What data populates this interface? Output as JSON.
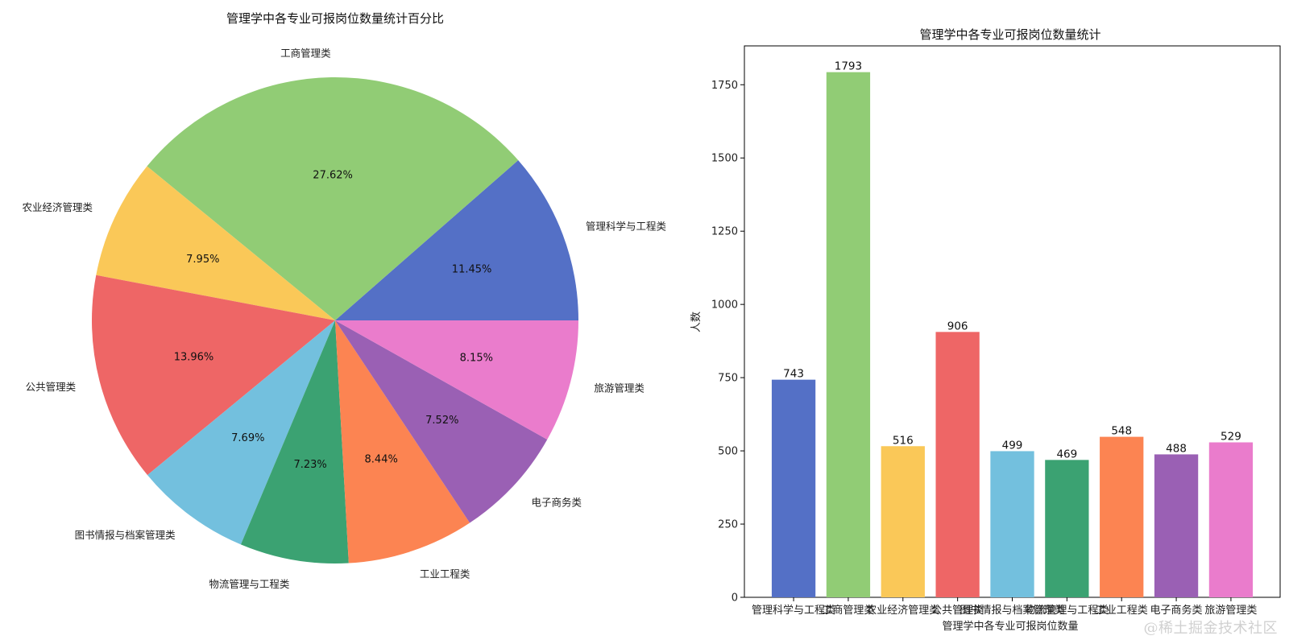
{
  "colors": [
    "#5470c6",
    "#91cc75",
    "#fac858",
    "#ee6666",
    "#73c0de",
    "#3ba272",
    "#fc8452",
    "#9a60b4",
    "#ea7ccc"
  ],
  "watermark": "@稀土掘金技术社区",
  "chart_data": [
    {
      "type": "pie",
      "title": "管理学中各专业可报岗位数量统计百分比",
      "labels": [
        "管理科学与工程类",
        "工商管理类",
        "农业经济管理类",
        "公共管理类",
        "图书情报与档案管理类",
        "物流管理与工程类",
        "工业工程类",
        "电子商务类",
        "旅游管理类"
      ],
      "values": [
        743,
        1793,
        516,
        906,
        499,
        469,
        548,
        488,
        529
      ],
      "percent_labels": [
        "11.45%",
        "27.62%",
        "7.95%",
        "13.96%",
        "7.69%",
        "7.23%",
        "8.44%",
        "7.52%",
        "8.15%"
      ],
      "start_angle_deg": 0,
      "direction": "counterclockwise"
    },
    {
      "type": "bar",
      "title": "管理学中各专业可报岗位数量统计",
      "categories": [
        "管理科学与工程类",
        "工商管理类",
        "农业经济管理类",
        "公共管理类",
        "图书情报与档案管理类",
        "物流管理与工程类",
        "工业工程类",
        "电子商务类",
        "旅游管理类"
      ],
      "values": [
        743,
        1793,
        516,
        906,
        499,
        469,
        548,
        488,
        529
      ],
      "xlabel": "管理学中各专业可报岗位数量",
      "ylabel": "人数",
      "ylim": [
        0,
        1882.65
      ],
      "yticks": [
        "0",
        "250",
        "500",
        "750",
        "1000",
        "1250",
        "1500",
        "1750"
      ],
      "grid": false,
      "value_labels": true
    }
  ]
}
